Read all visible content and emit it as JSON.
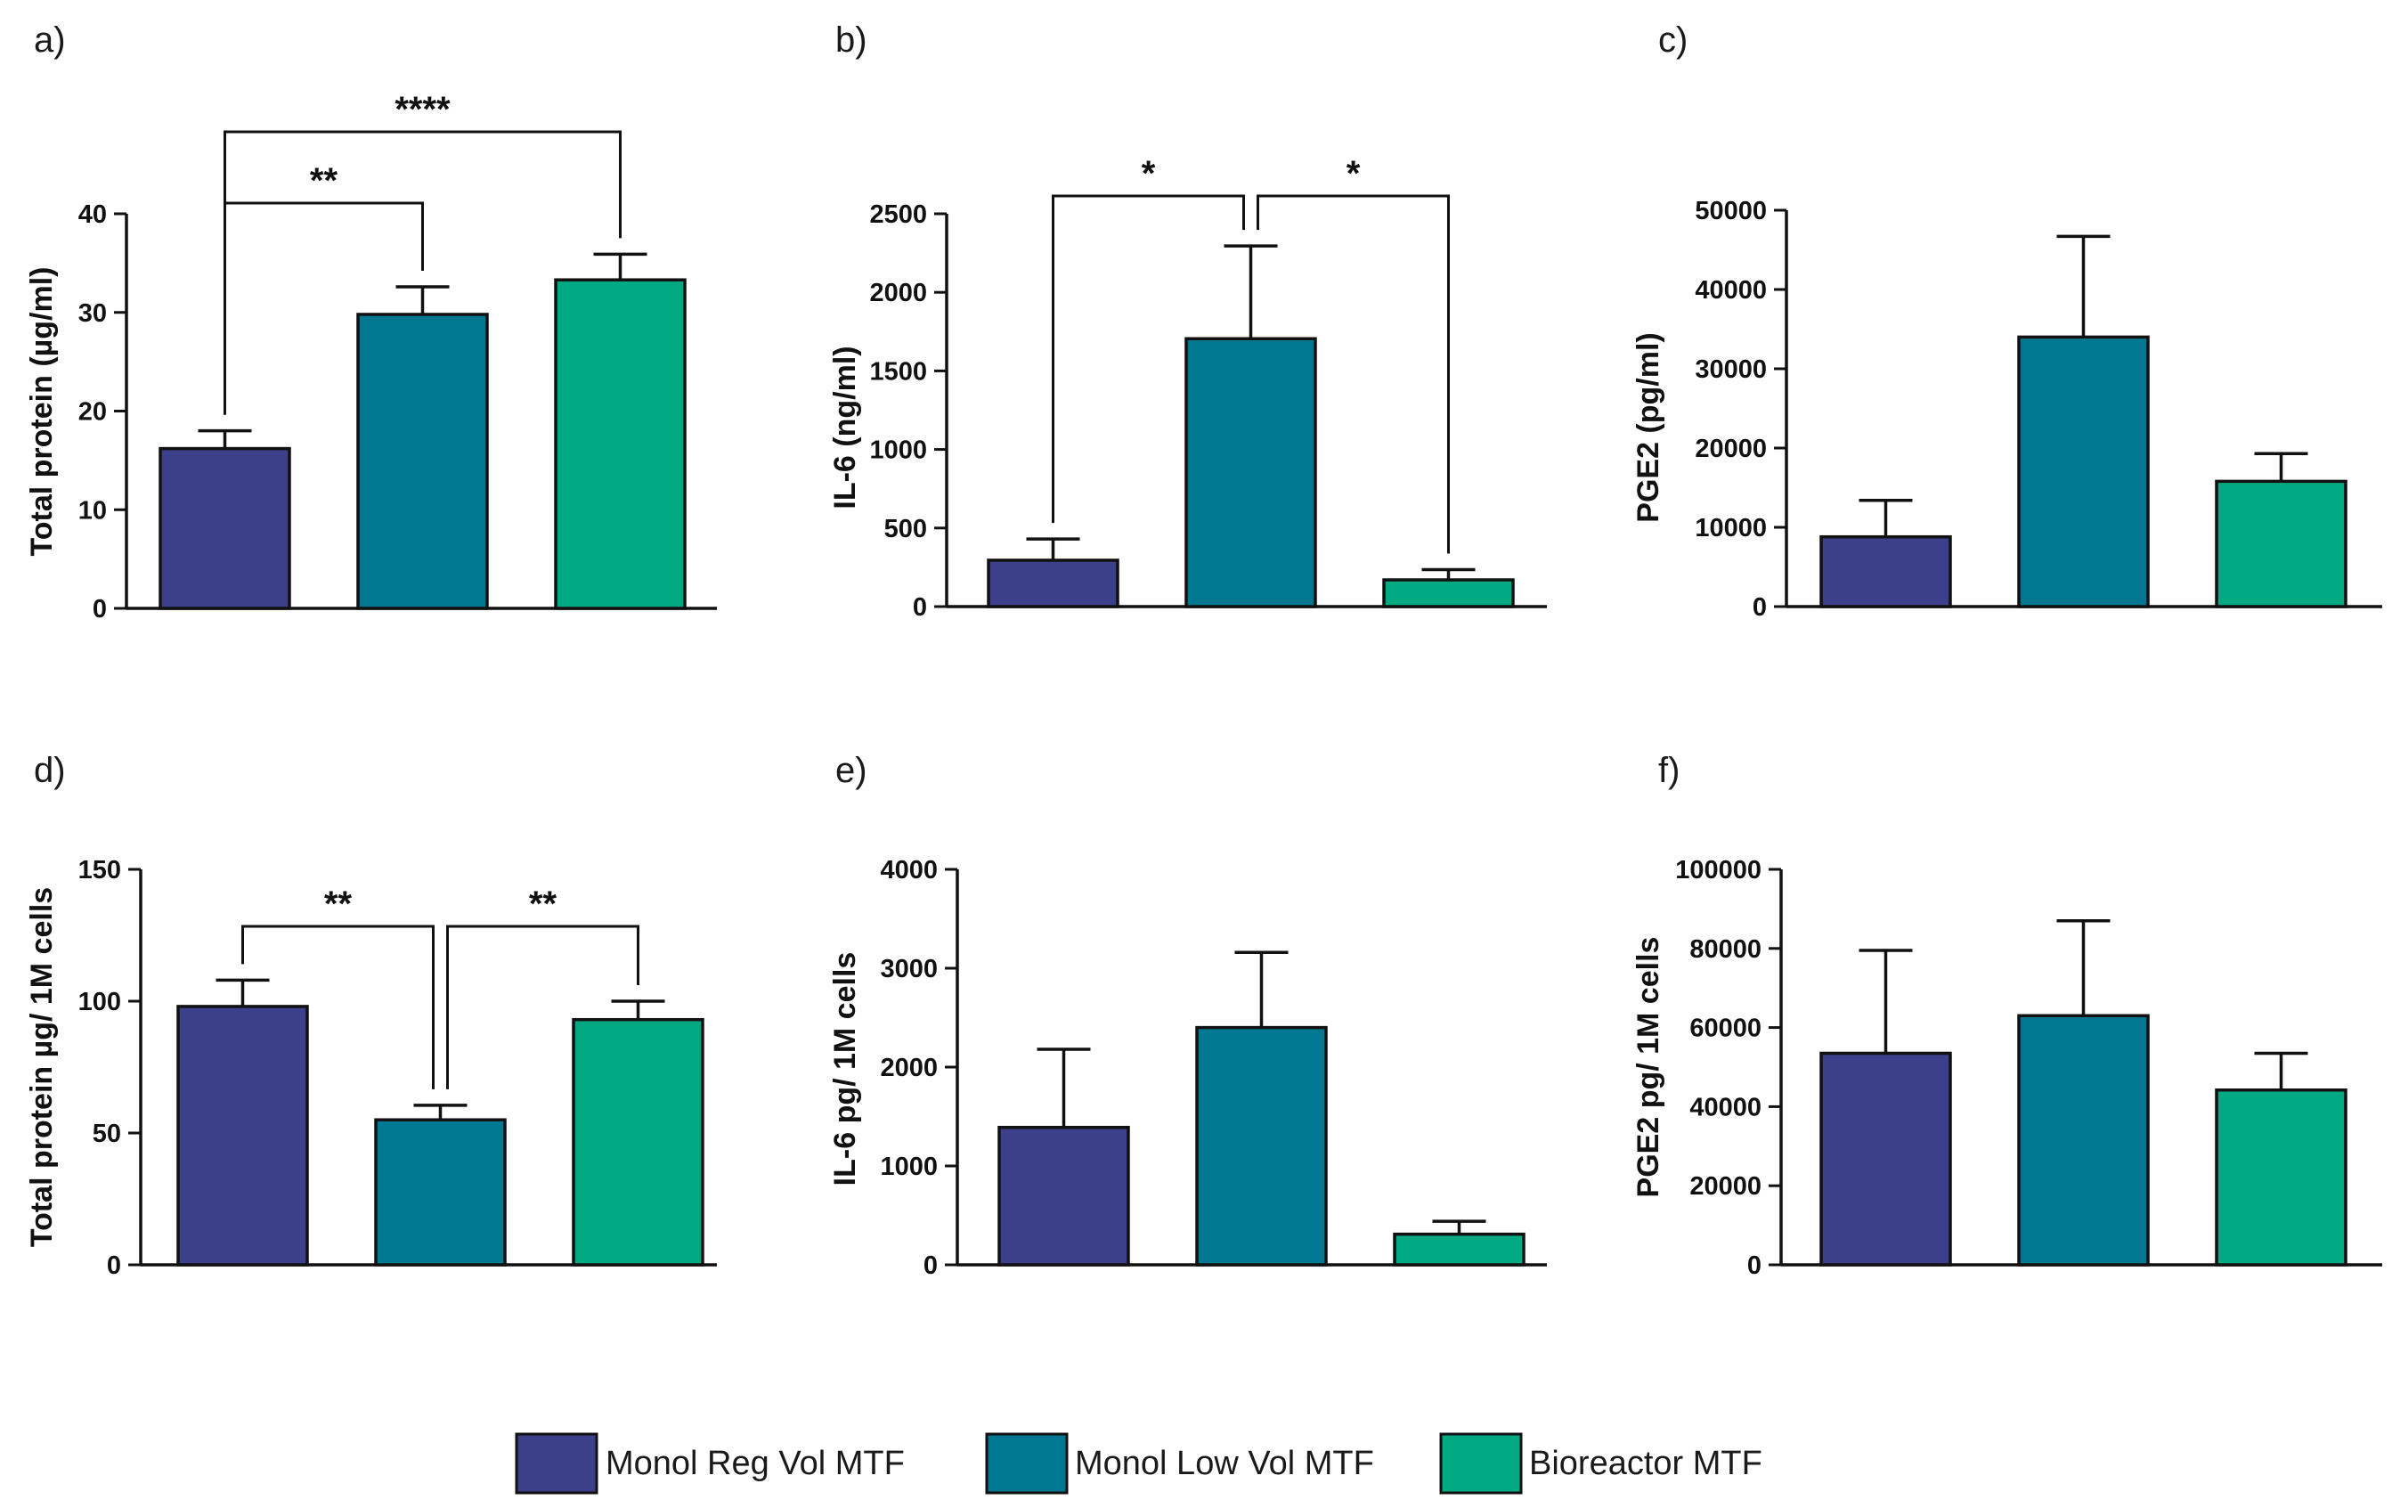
{
  "colors": {
    "Monol Reg Vol MTF": "#3c3f8a",
    "Monol Low Vol MTF": "#007891",
    "Bioreactor MTF": "#00a982"
  },
  "legend": [
    {
      "label": "Monol Reg Vol MTF",
      "color": "#3c3f8a"
    },
    {
      "label": "Monol Low Vol MTF",
      "color": "#007891"
    },
    {
      "label": "Bioreactor MTF",
      "color": "#00a982"
    }
  ],
  "chart_data": [
    {
      "panel": "a)",
      "type": "bar",
      "categories": [
        "Monol Reg Vol MTF",
        "Monol Low Vol MTF",
        "Bioreactor MTF"
      ],
      "values": [
        16.2,
        29.8,
        33.3
      ],
      "errors": [
        1.8,
        2.8,
        2.6
      ],
      "ylabel": "Total protein  (µg/ml)",
      "ylim": [
        0,
        40
      ],
      "yticks": [
        "0",
        "10",
        "20",
        "30",
        "40"
      ],
      "significance": [
        {
          "from": 0,
          "to": 1,
          "label": "**"
        },
        {
          "from": 0,
          "to": 2,
          "label": "****"
        }
      ]
    },
    {
      "panel": "b)",
      "type": "bar",
      "categories": [
        "Monol Reg Vol MTF",
        "Monol Low Vol MTF",
        "Bioreactor MTF"
      ],
      "values": [
        295,
        1705,
        170
      ],
      "errors": [
        135,
        590,
        65
      ],
      "ylabel": "IL-6 (ng/ml)",
      "ylim": [
        0,
        2500
      ],
      "yticks": [
        "0",
        "500",
        "1000",
        "1500",
        "2000",
        "2500"
      ],
      "significance": [
        {
          "from": 0,
          "to": 1,
          "label": "*"
        },
        {
          "from": 1,
          "to": 2,
          "label": "*"
        }
      ]
    },
    {
      "panel": "c)",
      "type": "bar",
      "categories": [
        "Monol Reg Vol MTF",
        "Monol Low Vol MTF",
        "Bioreactor MTF"
      ],
      "values": [
        8800,
        34000,
        15800
      ],
      "errors": [
        4600,
        12700,
        3500
      ],
      "ylabel": "PGE2 (pg/ml)",
      "ylim": [
        0,
        50000
      ],
      "yticks": [
        "0",
        "10000",
        "20000",
        "30000",
        "40000",
        "50000"
      ],
      "significance": []
    },
    {
      "panel": "d)",
      "type": "bar",
      "categories": [
        "Monol Reg Vol MTF",
        "Monol Low Vol MTF",
        "Bioreactor MTF"
      ],
      "values": [
        98,
        55,
        93
      ],
      "errors": [
        10,
        5.5,
        7
      ],
      "ylabel": "Total protein µg/ 1M cells",
      "ylim": [
        0,
        150
      ],
      "yticks": [
        "0",
        "50",
        "100",
        "150"
      ],
      "significance": [
        {
          "from": 0,
          "to": 1,
          "label": "**"
        },
        {
          "from": 1,
          "to": 2,
          "label": "**"
        }
      ]
    },
    {
      "panel": "e)",
      "type": "bar",
      "categories": [
        "Monol Reg Vol MTF",
        "Monol Low Vol MTF",
        "Bioreactor MTF"
      ],
      "values": [
        1390,
        2400,
        310
      ],
      "errors": [
        790,
        760,
        130
      ],
      "ylabel": "IL-6 pg/ 1M cells",
      "ylim": [
        0,
        4000
      ],
      "yticks": [
        "0",
        "1000",
        "2000",
        "3000",
        "4000"
      ],
      "significance": []
    },
    {
      "panel": "f)",
      "type": "bar",
      "categories": [
        "Monol Reg Vol MTF",
        "Monol Low Vol MTF",
        "Bioreactor MTF"
      ],
      "values": [
        53500,
        63000,
        44200
      ],
      "errors": [
        26000,
        24000,
        9300
      ],
      "ylabel": "PGE2 pg/ 1M cells",
      "ylim": [
        0,
        100000
      ],
      "yticks": [
        "0",
        "20000",
        "40000",
        "60000",
        "80000",
        "100000"
      ],
      "significance": []
    }
  ]
}
